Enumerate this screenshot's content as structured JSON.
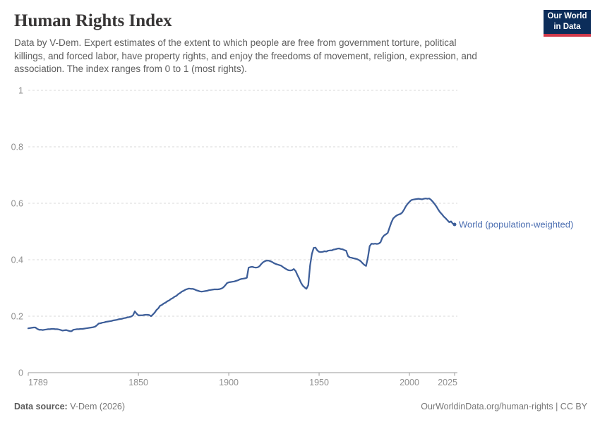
{
  "header": {
    "title": "Human Rights Index",
    "subtitle_lines": [
      "Data by V-Dem. Expert estimates of the extent to which people are free from government torture, political",
      "killings, and forced labor, have property rights, and enjoy the freedoms of movement, religion, expression, and",
      "association. The index ranges from 0 to 1 (most rights)."
    ]
  },
  "logo": {
    "line1": "Our World",
    "line2": "in Data",
    "bg_color": "#0c2d5a",
    "accent_color": "#d0394a"
  },
  "chart_data": {
    "type": "line",
    "title": "Human Rights Index",
    "xlabel": "",
    "ylabel": "",
    "xlim": [
      1789,
      2025
    ],
    "ylim": [
      0,
      1
    ],
    "grid": "horizontal-dashed",
    "grid_color": "#d9d9d9",
    "axis_color": "#9a9a9a",
    "axis_text_color": "#8f8f8f",
    "ytick_values": [
      0,
      0.2,
      0.4,
      0.6,
      0.8,
      1
    ],
    "ytick_labels": [
      "0",
      "0.2",
      "0.4",
      "0.6",
      "0.8",
      "1"
    ],
    "xtick_values": [
      1789,
      1850,
      1900,
      1950,
      2000,
      2025
    ],
    "xtick_labels": [
      "1789",
      "1850",
      "1900",
      "1950",
      "2000",
      "2025"
    ],
    "legend_position": "end-of-line-label",
    "series": [
      {
        "name": "World (population-weighted)",
        "color": "#3d5e99",
        "label_color": "#4c6fb2",
        "x_start": 1789,
        "x_step": 1,
        "x_end": 2025,
        "values": [
          0.157,
          0.158,
          0.159,
          0.16,
          0.16,
          0.155,
          0.152,
          0.152,
          0.151,
          0.152,
          0.153,
          0.154,
          0.154,
          0.155,
          0.155,
          0.154,
          0.154,
          0.153,
          0.151,
          0.149,
          0.15,
          0.151,
          0.149,
          0.147,
          0.147,
          0.152,
          0.153,
          0.154,
          0.154,
          0.155,
          0.155,
          0.156,
          0.157,
          0.158,
          0.159,
          0.16,
          0.161,
          0.163,
          0.168,
          0.174,
          0.175,
          0.177,
          0.178,
          0.18,
          0.181,
          0.182,
          0.183,
          0.185,
          0.186,
          0.187,
          0.189,
          0.19,
          0.191,
          0.193,
          0.194,
          0.196,
          0.197,
          0.199,
          0.203,
          0.217,
          0.209,
          0.203,
          0.203,
          0.203,
          0.204,
          0.205,
          0.205,
          0.204,
          0.2,
          0.206,
          0.213,
          0.222,
          0.228,
          0.237,
          0.24,
          0.245,
          0.248,
          0.253,
          0.256,
          0.261,
          0.264,
          0.269,
          0.272,
          0.278,
          0.282,
          0.287,
          0.29,
          0.294,
          0.296,
          0.298,
          0.297,
          0.297,
          0.295,
          0.292,
          0.29,
          0.288,
          0.287,
          0.288,
          0.289,
          0.29,
          0.292,
          0.293,
          0.294,
          0.295,
          0.295,
          0.295,
          0.296,
          0.298,
          0.302,
          0.309,
          0.317,
          0.32,
          0.321,
          0.322,
          0.323,
          0.325,
          0.327,
          0.33,
          0.332,
          0.333,
          0.334,
          0.336,
          0.372,
          0.374,
          0.375,
          0.373,
          0.372,
          0.373,
          0.377,
          0.385,
          0.391,
          0.395,
          0.397,
          0.397,
          0.395,
          0.392,
          0.388,
          0.385,
          0.383,
          0.381,
          0.379,
          0.374,
          0.37,
          0.366,
          0.363,
          0.362,
          0.363,
          0.367,
          0.36,
          0.346,
          0.333,
          0.318,
          0.308,
          0.302,
          0.297,
          0.31,
          0.38,
          0.42,
          0.442,
          0.443,
          0.433,
          0.428,
          0.427,
          0.428,
          0.43,
          0.429,
          0.432,
          0.433,
          0.433,
          0.436,
          0.437,
          0.439,
          0.44,
          0.438,
          0.437,
          0.434,
          0.432,
          0.413,
          0.408,
          0.407,
          0.405,
          0.404,
          0.402,
          0.399,
          0.395,
          0.388,
          0.382,
          0.378,
          0.408,
          0.448,
          0.457,
          0.456,
          0.457,
          0.456,
          0.457,
          0.462,
          0.478,
          0.486,
          0.49,
          0.495,
          0.514,
          0.532,
          0.546,
          0.552,
          0.557,
          0.56,
          0.562,
          0.567,
          0.577,
          0.589,
          0.598,
          0.605,
          0.611,
          0.613,
          0.614,
          0.615,
          0.616,
          0.615,
          0.614,
          0.616,
          0.617,
          0.616,
          0.617,
          0.612,
          0.605,
          0.597,
          0.588,
          0.577,
          0.568,
          0.561,
          0.553,
          0.547,
          0.54,
          0.533,
          0.536,
          0.528,
          0.525
        ]
      }
    ]
  },
  "footer": {
    "source_label": "Data source:",
    "source_value": " V-Dem (2026)",
    "attribution": "OurWorldinData.org/human-rights | CC BY"
  }
}
